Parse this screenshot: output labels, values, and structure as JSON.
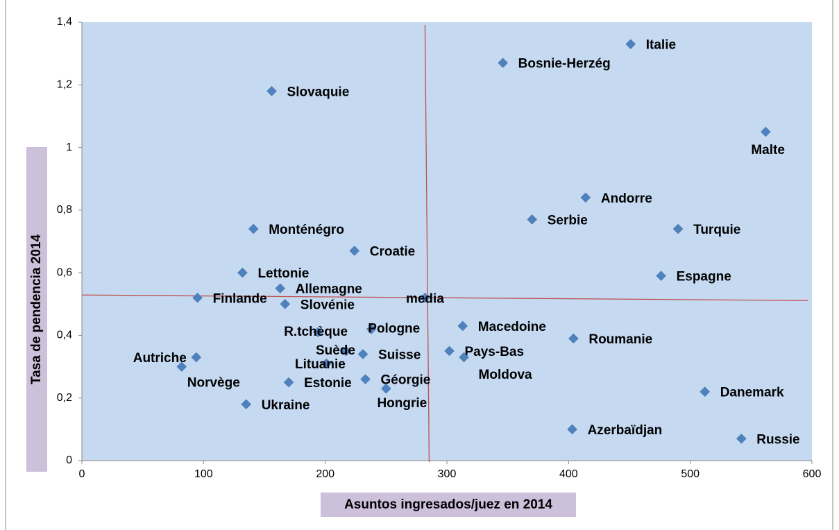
{
  "chart_data": {
    "type": "scatter",
    "xlabel": "Asuntos ingresados/juez en 2014",
    "ylabel": "Tasa de pendencia 2014",
    "xlim": [
      0,
      600
    ],
    "xticks": [
      0,
      100,
      200,
      300,
      400,
      500,
      600
    ],
    "ylim": [
      0,
      1.4
    ],
    "yticks": [
      0,
      {
        "value": 0.2,
        "label": "0,2"
      },
      {
        "value": 0.4,
        "label": "0,4"
      },
      {
        "value": 0.6,
        "label": "0,6"
      },
      {
        "value": 0.8,
        "label": "0,8"
      },
      1,
      {
        "value": 1.2,
        "label": "1,2"
      },
      {
        "value": 1.4,
        "label": "1,4"
      }
    ],
    "series": [
      {
        "color": "#4f81bd",
        "labels": [
          "Italie",
          "Bosnie-Herzég",
          "Slovaquie",
          "Malte",
          "Andorre",
          "Serbie",
          "Turquie",
          "Monténégro",
          "Croatie",
          "Lettonie",
          "Espagne",
          "Allemagne",
          "Finlande",
          "Slovénie",
          "media",
          "Macedoine",
          "Pologne",
          "R.tchèque",
          "Roumanie",
          "Pays-Bas",
          "Suède",
          "Suisse",
          "Moldova",
          "Autriche",
          "Norvège",
          "Lituanie",
          "Géorgie",
          "Estonie",
          "Hongrie",
          "Danemark",
          "Ukraine",
          "Azerbaïdjan",
          "Russie"
        ],
        "x": [
          451,
          346,
          156,
          562,
          414,
          370,
          490,
          141,
          224,
          132,
          476,
          163,
          95,
          167,
          282,
          313,
          238,
          194,
          404,
          302,
          217,
          231,
          314,
          94,
          82,
          201,
          233,
          170,
          250,
          512,
          135,
          403,
          542
        ],
        "values": [
          1.33,
          1.27,
          1.18,
          1.05,
          0.84,
          0.77,
          0.74,
          0.74,
          0.67,
          0.6,
          0.59,
          0.55,
          0.52,
          0.5,
          0.52,
          0.43,
          0.42,
          0.41,
          0.39,
          0.35,
          0.35,
          0.34,
          0.33,
          0.33,
          0.3,
          0.31,
          0.26,
          0.25,
          0.23,
          0.22,
          0.18,
          0.1,
          0.07
        ]
      }
    ]
  }
}
